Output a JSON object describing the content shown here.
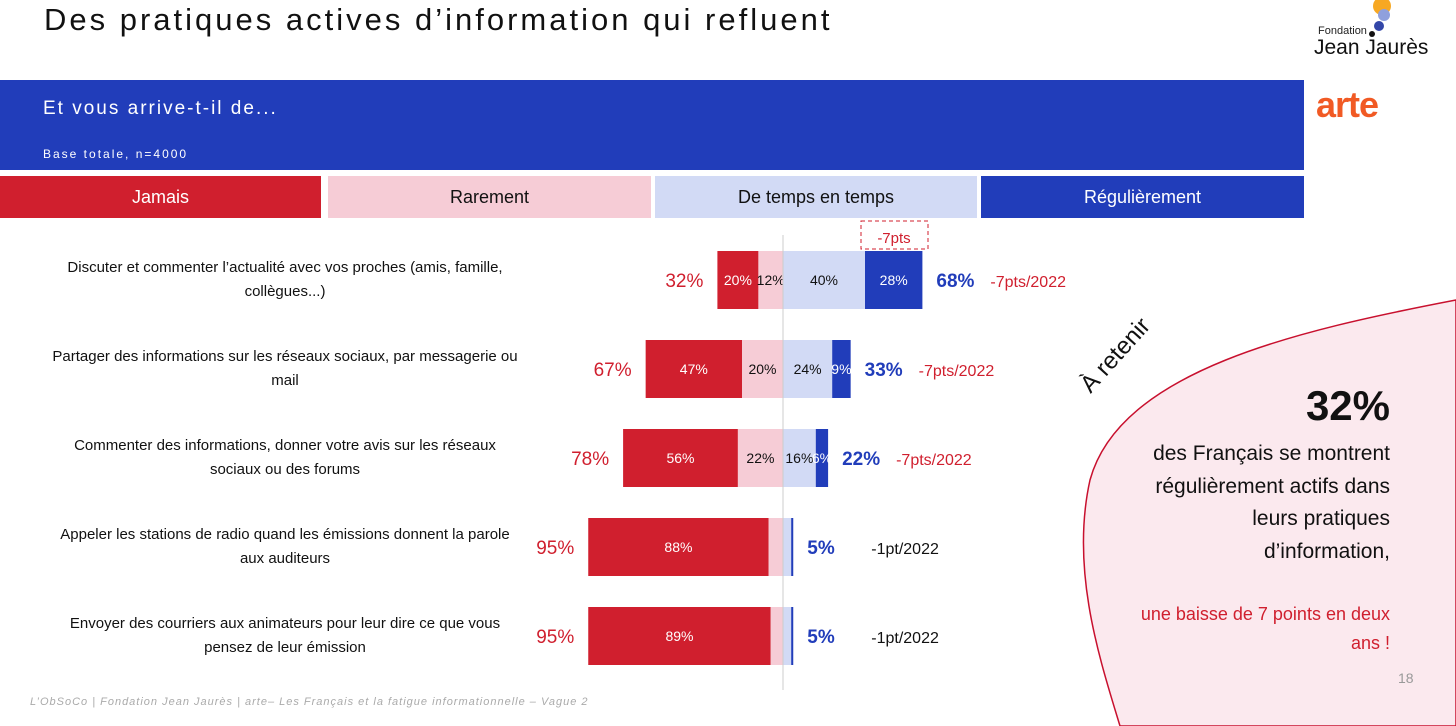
{
  "title": "Des pratiques actives d’information qui refluent",
  "logos": {
    "fjj_small": "Fondation",
    "fjj_big": "Jean Jaurès",
    "arte": "arte"
  },
  "banner": {
    "question": "Et vous arrive-t-il de...",
    "base": "Base totale, n=4000"
  },
  "colors": {
    "jamais": "#d01f2e",
    "rarement": "#f6ccd6",
    "temps": "#d2daf5",
    "regulierement": "#213dba"
  },
  "chart_data": {
    "type": "bar",
    "stacked": "diverging",
    "legend": [
      "Jamais",
      "Rarement",
      "De temps en temps",
      "Régulièrement"
    ],
    "categories": [
      "Discuter et commenter l’actualité avec vos proches (amis, famille, collègues...)",
      "Partager des informations sur les réseaux sociaux, par messagerie ou mail",
      "Commenter des informations, donner votre avis sur les réseaux sociaux ou des forums",
      "Appeler les stations de radio quand les émissions donnent la parole aux auditeurs",
      "Envoyer des courriers aux animateurs pour leur dire ce que vous pensez de leur émission"
    ],
    "series": [
      {
        "name": "Jamais",
        "values": [
          20,
          47,
          56,
          88,
          89
        ]
      },
      {
        "name": "Rarement",
        "values": [
          12,
          20,
          22,
          7,
          6
        ]
      },
      {
        "name": "De temps en temps",
        "values": [
          40,
          24,
          16,
          4,
          4
        ]
      },
      {
        "name": "Régulièrement",
        "values": [
          28,
          9,
          6,
          1,
          1
        ]
      }
    ],
    "segment_labels": [
      [
        "20%",
        "12%",
        "40%",
        "28%"
      ],
      [
        "47%",
        "20%",
        "24%",
        "9%"
      ],
      [
        "56%",
        "22%",
        "16%",
        "6%"
      ],
      [
        "88%",
        "",
        "",
        ""
      ],
      [
        "89%",
        "",
        "",
        ""
      ]
    ],
    "neg_totals": [
      "32%",
      "67%",
      "78%",
      "95%",
      "95%"
    ],
    "pos_totals": [
      "68%",
      "33%",
      "22%",
      "5%",
      "5%"
    ],
    "evolution": [
      "-7pts/2022",
      "-7pts/2022",
      "-7pts/2022",
      "-1pt/2022",
      "-1pt/2022"
    ],
    "callout": "-7pts"
  },
  "takeaway": {
    "header": "À retenir",
    "value": "32%",
    "text": "des Français se montrent régulièrement actifs dans leurs pratiques d’information,",
    "highlight": "une baisse de 7 points en deux ans !"
  },
  "footer": "L’ObSoCo | Fondation Jean Jaurès | arte– Les Français et la fatigue informationnelle – Vague 2",
  "page": "18"
}
